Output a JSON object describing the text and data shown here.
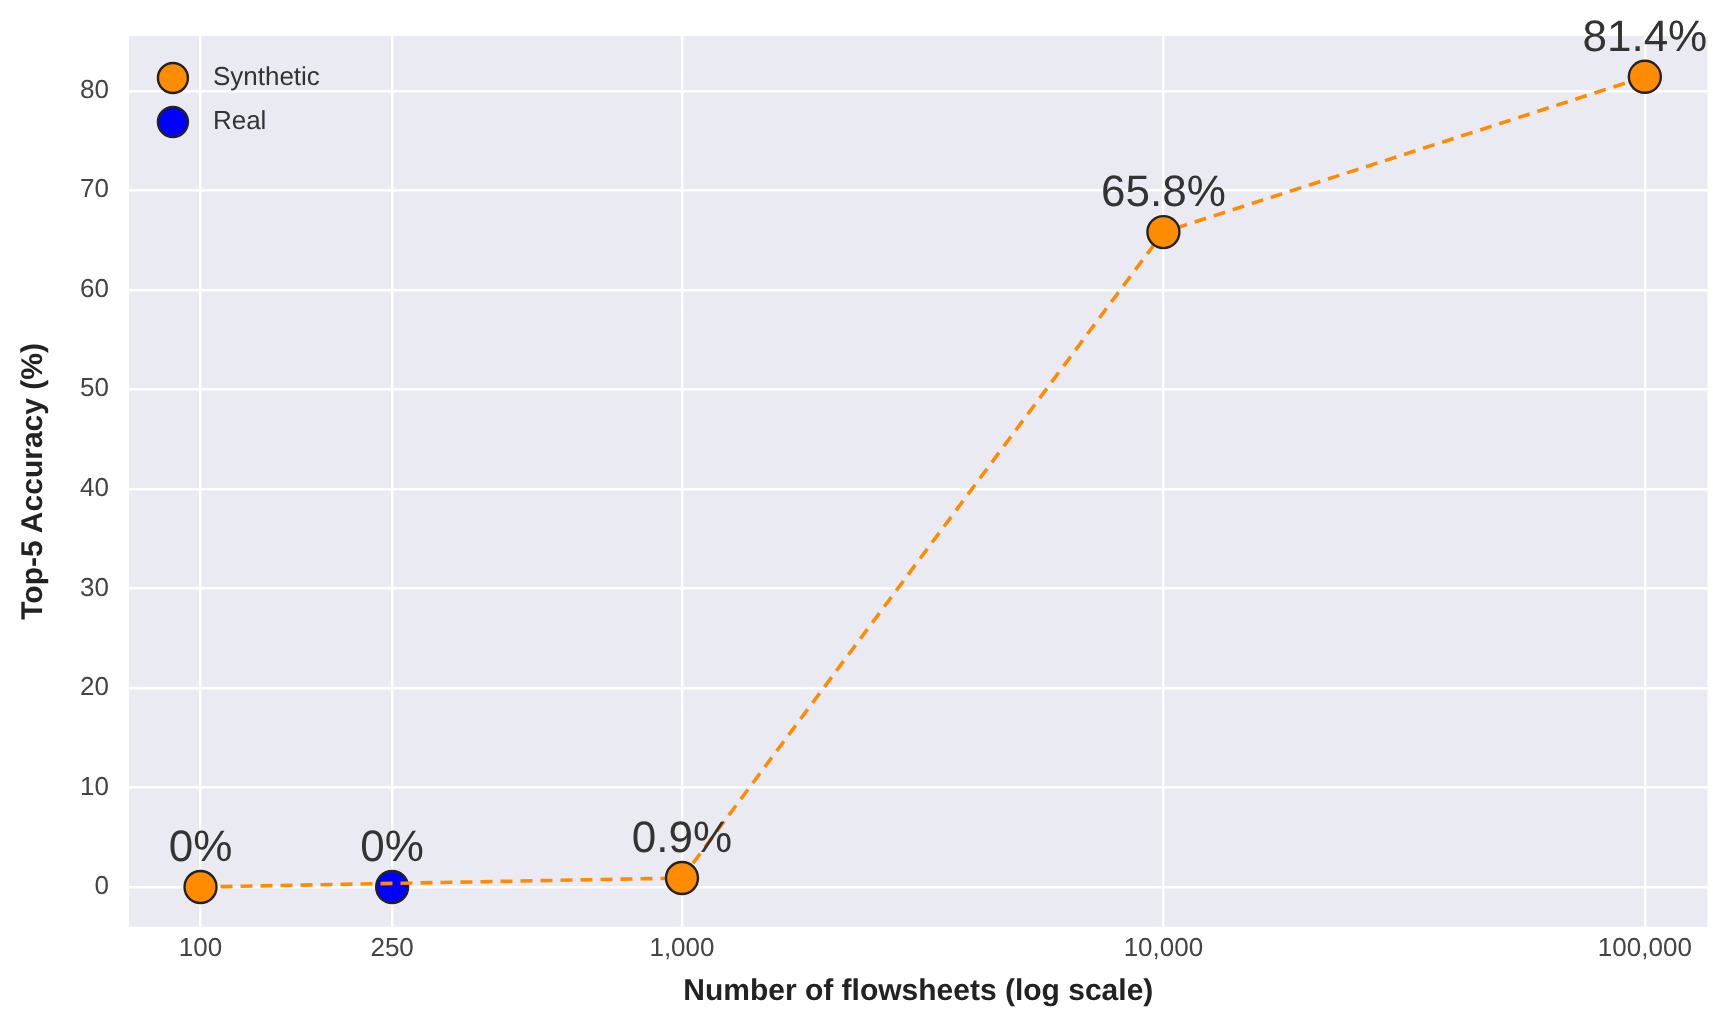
{
  "chart_data": {
    "type": "line",
    "xlabel": "Number of flowsheets (log scale)",
    "ylabel": "Top-5 Accuracy (%)",
    "series": [
      {
        "name": "Synthetic",
        "type": "line",
        "color": "#ff8c00",
        "x": [
          100,
          1000,
          10000,
          100000
        ],
        "values": [
          0,
          0.9,
          65.8,
          81.4
        ],
        "value_labels": [
          "0%",
          "0.9%",
          "65.8%",
          "81.4%"
        ]
      },
      {
        "name": "Real",
        "type": "scatter",
        "color": "#0000ff",
        "x": [
          250
        ],
        "values": [
          0
        ],
        "value_labels": [
          "0%"
        ]
      }
    ],
    "log": "x",
    "xlim": [
      71,
      135000
    ],
    "xticks": [
      100,
      250,
      {
        "value": 1000,
        "label": "1,000"
      },
      {
        "value": 10000,
        "label": "10,000"
      },
      {
        "value": 100000,
        "label": "100,000"
      }
    ],
    "ylim": [
      -4,
      85.5
    ],
    "yticks": [
      0,
      10,
      20,
      30,
      40,
      50,
      60,
      70,
      80
    ],
    "grid": true,
    "legend": "top left",
    "marker": "circle",
    "line_style": "dashed"
  }
}
